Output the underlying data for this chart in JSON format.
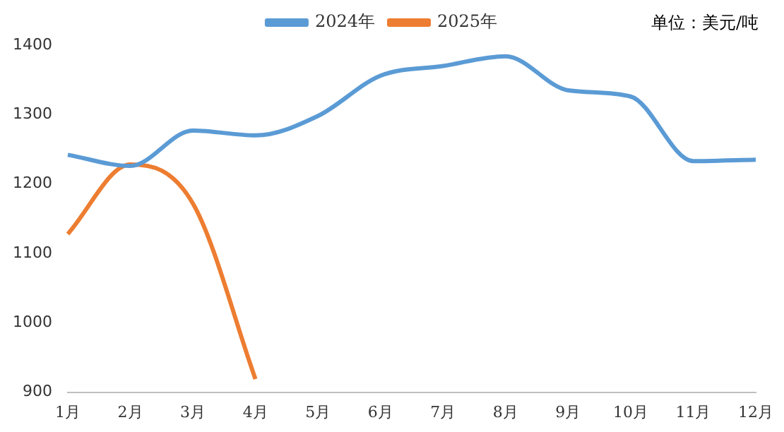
{
  "chart_data": {
    "type": "line",
    "categories": [
      "1月",
      "2月",
      "3月",
      "4月",
      "5月",
      "6月",
      "7月",
      "8月",
      "9月",
      "10月",
      "11月",
      "12月"
    ],
    "series": [
      {
        "name": "2024年",
        "color": "#5b9bd5",
        "values": [
          1242,
          1226,
          1277,
          1270,
          1298,
          1356,
          1370,
          1384,
          1335,
          1326,
          1233,
          1235
        ]
      },
      {
        "name": "2025年",
        "color": "#ed7d31",
        "values": [
          1128,
          1228,
          1172,
          919,
          null,
          null,
          null,
          null,
          null,
          null,
          null,
          null
        ]
      }
    ],
    "ylim": [
      900,
      1400
    ],
    "yticks": [
      900,
      1000,
      1100,
      1200,
      1300,
      1400
    ],
    "grid": false,
    "legend": "top",
    "marker": "none",
    "line_style": "solid",
    "annotations": [
      "单位：美元/吨"
    ]
  }
}
